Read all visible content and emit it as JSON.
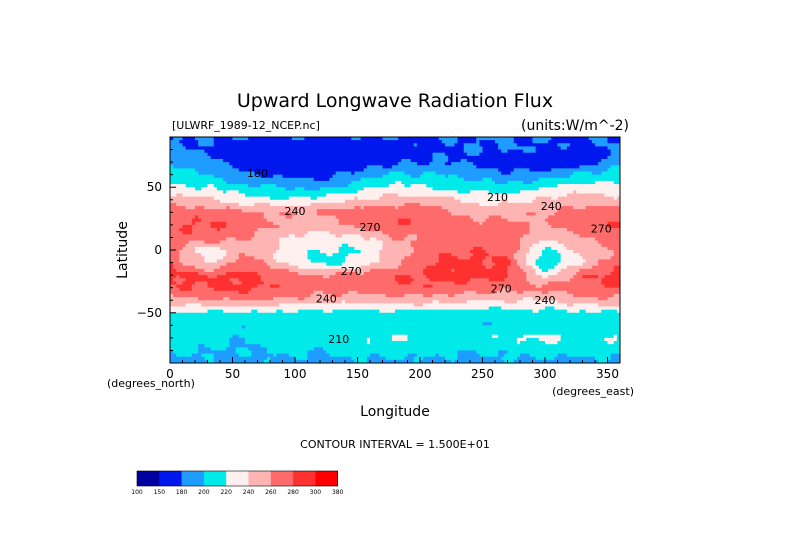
{
  "chart_data": {
    "type": "heatmap",
    "title": "Upward Longwave Radiation Flux",
    "source_label": "[ULWRF_1989-12_NCEP.nc]",
    "units_label": "(units:W/m^-2)",
    "xlabel": "Longitude",
    "ylabel": "Latitude",
    "x_unit_label": "(degrees_east)",
    "y_unit_label": "(degrees_north)",
    "xlim": [
      0,
      360
    ],
    "ylim": [
      -90,
      90
    ],
    "x_ticks": [
      0,
      50,
      100,
      150,
      200,
      250,
      300,
      350
    ],
    "y_ticks": [
      50,
      0,
      -50
    ],
    "y_tick_labels": [
      "50",
      "0",
      "−50"
    ],
    "contour_interval_text": "CONTOUR INTERVAL = 1.500E+01",
    "colorbar": {
      "levels": [
        "100",
        "150",
        "180",
        "200",
        "220",
        "240",
        "260",
        "280",
        "300",
        "380"
      ],
      "colors": [
        "#0000a0",
        "#0018ee",
        "#1e9cff",
        "#00eaea",
        "#fff0f0",
        "#ffb4b4",
        "#ff6b6b",
        "#ff3030",
        "#ff0000"
      ]
    },
    "contour_labels": [
      {
        "text": "180",
        "lon": 70,
        "lat": 58
      },
      {
        "text": "210",
        "lon": 262,
        "lat": 39
      },
      {
        "text": "240",
        "lon": 305,
        "lat": 32
      },
      {
        "text": "240",
        "lon": 100,
        "lat": 28
      },
      {
        "text": "270",
        "lon": 160,
        "lat": 15
      },
      {
        "text": "270",
        "lon": 345,
        "lat": 14
      },
      {
        "text": "270",
        "lon": 145,
        "lat": -20
      },
      {
        "text": "270",
        "lon": 265,
        "lat": -34
      },
      {
        "text": "240",
        "lon": 125,
        "lat": -42
      },
      {
        "text": "240",
        "lon": 300,
        "lat": -43
      },
      {
        "text": "210",
        "lon": 135,
        "lat": -74
      }
    ],
    "bands": [
      {
        "lat": 90,
        "values": [
          180,
          180,
          180,
          180,
          180,
          180,
          180,
          180,
          180,
          180,
          180,
          180,
          180
        ]
      },
      {
        "lat": 80,
        "values": [
          185,
          178,
          170,
          165,
          160,
          162,
          168,
          175,
          180,
          182,
          178,
          172,
          185
        ]
      },
      {
        "lat": 70,
        "values": [
          195,
          188,
          170,
          160,
          155,
          162,
          175,
          180,
          178,
          168,
          160,
          165,
          195
        ]
      },
      {
        "lat": 60,
        "values": [
          210,
          200,
          185,
          175,
          170,
          190,
          205,
          200,
          195,
          185,
          190,
          205,
          210
        ]
      },
      {
        "lat": 50,
        "values": [
          225,
          220,
          205,
          200,
          195,
          210,
          225,
          218,
          212,
          205,
          220,
          230,
          225
        ]
      },
      {
        "lat": 40,
        "values": [
          248,
          245,
          225,
          222,
          228,
          240,
          250,
          248,
          235,
          232,
          242,
          250,
          248
        ]
      },
      {
        "lat": 30,
        "values": [
          272,
          270,
          265,
          258,
          262,
          272,
          275,
          272,
          255,
          250,
          258,
          268,
          272
        ]
      },
      {
        "lat": 20,
        "values": [
          280,
          282,
          275,
          255,
          248,
          270,
          280,
          275,
          268,
          265,
          258,
          272,
          280
        ]
      },
      {
        "lat": 10,
        "values": [
          270,
          275,
          262,
          240,
          230,
          235,
          258,
          265,
          270,
          272,
          245,
          255,
          270
        ]
      },
      {
        "lat": 0,
        "values": [
          265,
          228,
          252,
          235,
          222,
          218,
          248,
          272,
          278,
          275,
          215,
          245,
          265
        ]
      },
      {
        "lat": -10,
        "values": [
          275,
          232,
          272,
          242,
          210,
          222,
          256,
          282,
          285,
          280,
          200,
          240,
          275
        ]
      },
      {
        "lat": -20,
        "values": [
          288,
          280,
          285,
          270,
          262,
          270,
          278,
          285,
          288,
          285,
          230,
          275,
          288
        ]
      },
      {
        "lat": -30,
        "values": [
          278,
          282,
          285,
          275,
          270,
          272,
          278,
          276,
          270,
          268,
          268,
          278,
          278
        ]
      },
      {
        "lat": -40,
        "values": [
          255,
          258,
          265,
          255,
          250,
          248,
          252,
          250,
          245,
          242,
          240,
          252,
          255
        ]
      },
      {
        "lat": -50,
        "values": [
          218,
          215,
          218,
          215,
          212,
          212,
          215,
          212,
          210,
          210,
          212,
          215,
          218
        ]
      },
      {
        "lat": -60,
        "values": [
          212,
          208,
          205,
          205,
          208,
          205,
          205,
          205,
          205,
          202,
          205,
          208,
          212
        ]
      },
      {
        "lat": -70,
        "values": [
          222,
          210,
          200,
          215,
          205,
          218,
          222,
          212,
          210,
          220,
          225,
          215,
          222
        ]
      },
      {
        "lat": -80,
        "values": [
          205,
          200,
          198,
          205,
          200,
          208,
          210,
          205,
          200,
          205,
          210,
          205,
          205
        ]
      },
      {
        "lat": -90,
        "values": [
          195,
          195,
          195,
          195,
          195,
          195,
          195,
          195,
          195,
          195,
          195,
          195,
          195
        ]
      }
    ],
    "band_lons": [
      0,
      30,
      60,
      90,
      120,
      150,
      180,
      210,
      240,
      270,
      300,
      330,
      360
    ]
  }
}
